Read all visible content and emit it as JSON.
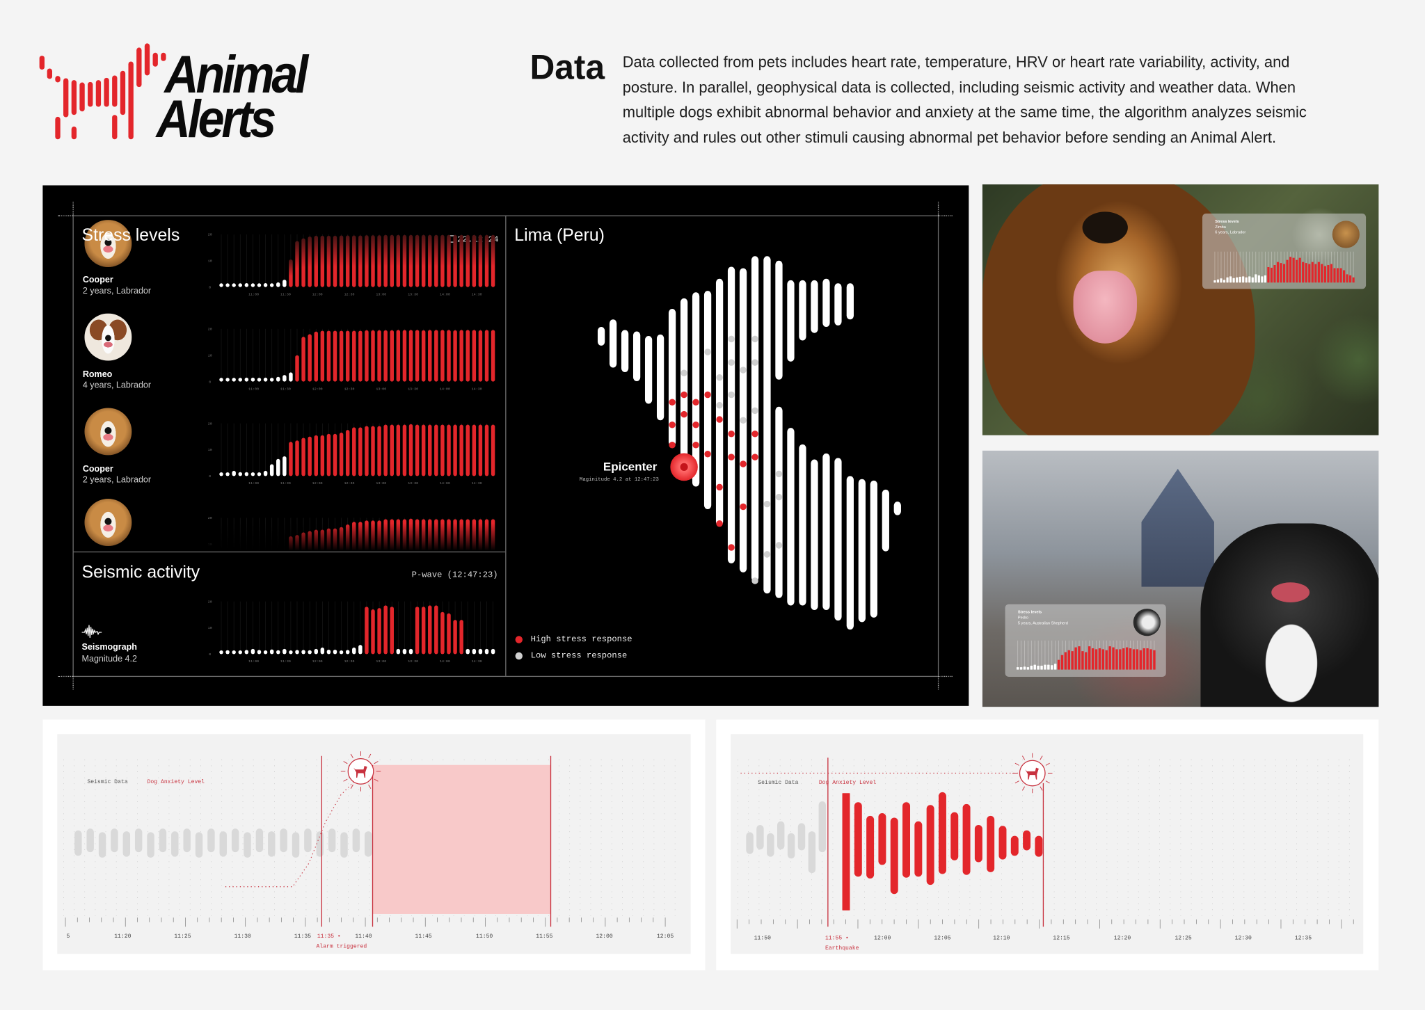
{
  "brand": {
    "name_line1": "Animal",
    "name_line2": "Alerts",
    "color": "#e3262b",
    "logo_icon": "bar-dog-logo"
  },
  "intro": {
    "heading": "Data",
    "lines": [
      "Data collected from pets includes heart rate, temperature, HRV or heart rate variability, activity, and",
      "posture. In parallel, geophysical data is collected, including seismic activity and weather data. When",
      "multiple dogs exhibit abnormal behavior and anxiety at the same time, the algorithm analyzes seismic",
      "activity and rules out other stimuli causing abnormal pet behavior before sending an Animal Alert."
    ]
  },
  "dashboard": {
    "stress": {
      "title": "Stress levels",
      "date": "22.12.24",
      "date_icon": "calendar-icon",
      "dogs": [
        {
          "name": "Cooper",
          "info": "2 years, Labrador"
        },
        {
          "name": "Romeo",
          "info": "4 years, Labrador"
        },
        {
          "name": "Cooper",
          "info": "2 years, Labrador"
        }
      ]
    },
    "seismic": {
      "title": "Seismic activity",
      "wave": "P-wave (12:47:23)",
      "icon": "seismograph-icon",
      "label": "Seismograph",
      "magnitude": "Magnitude 4.2"
    },
    "map": {
      "title": "Lima (Peru)",
      "epicenter_label": "Epicenter",
      "epicenter_detail": "Maginitude 4.2 at 12:47:23",
      "legend": [
        {
          "label": "High stress response",
          "color": "#e3262b"
        },
        {
          "label": "Low stress response",
          "color": "#cfcfcf"
        }
      ]
    }
  },
  "photos": [
    {
      "card_title": "Stress levels",
      "dog_name": "Zimba",
      "dog_info": "6 years, Labrador"
    },
    {
      "card_title": "Stress levels",
      "dog_name": "Pedro",
      "dog_info": "5 years, Australian Shepherd"
    }
  ],
  "timelines": [
    {
      "legend_seismic": "Seismic Data",
      "legend_anxiety": "Dog Anxiety Level",
      "event_time": "11:35",
      "event_label": "Alarm triggered",
      "first_tick": "5",
      "xticks": [
        "11:20",
        "11:25",
        "11:30",
        "11:35",
        "11:40",
        "11:45",
        "11:50",
        "11:55",
        "12:00",
        "12:05"
      ]
    },
    {
      "legend_seismic": "Seismic Data",
      "legend_anxiety": "Dog Anxiety Level",
      "event_time": "11:55",
      "event_label": "Earthquake",
      "xticks": [
        "11:50",
        "12:00",
        "12:05",
        "12:10",
        "12:15",
        "12:20",
        "12:25",
        "12:30",
        "12:35"
      ]
    }
  ],
  "colors": {
    "alert_red": "#e3262b",
    "timeline_red": "#c8323f",
    "highlight_pink": "#f8c9c9",
    "low_bar": "#ffffff",
    "seismic_gray": "#d9d9d9"
  },
  "chart_data": [
    {
      "type": "bar",
      "dog": "Cooper",
      "ylim": [
        0,
        20
      ],
      "yticks": [
        "0",
        "10",
        "20"
      ],
      "xticks": [
        "11:00",
        "11:30",
        "12:00",
        "12:30",
        "13:00",
        "13:30",
        "14:00",
        "14:30"
      ],
      "alert_start_index": 11,
      "values": [
        1,
        1.2,
        1,
        1,
        1.5,
        1.2,
        1,
        1.5,
        1.2,
        1.8,
        2.8,
        10.5,
        17.5,
        18.5,
        19.2,
        19.5,
        19.5,
        19.5,
        19.5,
        19.6,
        19.6,
        19.6,
        19.6,
        19.7,
        19.7,
        19.7,
        19.8,
        19.8,
        19.8,
        19.8,
        19.8,
        19.8,
        19.8,
        19.8,
        19.8,
        19.8,
        19.8,
        19.8,
        19.8,
        19.8,
        19.8,
        19.8,
        19.8,
        19.8
      ]
    },
    {
      "type": "bar",
      "dog": "Romeo",
      "ylim": [
        0,
        20
      ],
      "yticks": [
        "0",
        "10",
        "20"
      ],
      "xticks": [
        "11:00",
        "11:30",
        "12:00",
        "12:30",
        "13:00",
        "13:30",
        "14:00",
        "14:30"
      ],
      "alert_start_index": 12,
      "values": [
        1,
        1,
        1,
        1,
        1.5,
        1.5,
        1.2,
        1.5,
        1.3,
        1.8,
        2.5,
        3.5,
        10,
        17,
        18,
        19,
        19.3,
        19.3,
        19.3,
        19.3,
        19.3,
        19.3,
        19.3,
        19.5,
        19.5,
        19.5,
        19.5,
        19.5,
        19.6,
        19.6,
        19.6,
        19.6,
        19.5,
        19.6,
        19.6,
        19.6,
        19.6,
        19.5,
        19.6,
        19.6,
        19.6,
        19.5,
        19.6,
        19.6
      ]
    },
    {
      "type": "bar",
      "dog": "Cooper",
      "ylim": [
        0,
        20
      ],
      "yticks": [
        "0",
        "10",
        "20"
      ],
      "xticks": [
        "11:00",
        "11:30",
        "12:00",
        "12:30",
        "13:00",
        "13:30",
        "14:00",
        "14:30"
      ],
      "alert_start_index": 11,
      "values": [
        1,
        1,
        2,
        1.5,
        1.5,
        1,
        1.2,
        2,
        4.5,
        6.5,
        7.5,
        13,
        13.5,
        14.5,
        15,
        15.5,
        15.5,
        16,
        16,
        16.5,
        17.5,
        18.5,
        18.5,
        19,
        19,
        19,
        19.5,
        19.5,
        19.5,
        19.5,
        19.7,
        19.5,
        19.5,
        19.5,
        19.5,
        19.5,
        19.5,
        19.5,
        19.5,
        19.5,
        19.5,
        19.5,
        19.5,
        19.5
      ]
    },
    {
      "type": "bar",
      "ylim": [
        0,
        20
      ],
      "yticks": [
        "10",
        "20"
      ],
      "alert_start_index": 11,
      "values": [
        0.5,
        0.5,
        0.5,
        0.5,
        0.5,
        0.5,
        0.5,
        0.5,
        0.5,
        0.5,
        0.5,
        13,
        13.5,
        14.5,
        15,
        15.5,
        15.5,
        16,
        16,
        16.5,
        17.5,
        18.5,
        18.5,
        19,
        19,
        19,
        19.5,
        19.5,
        19.5,
        19.5,
        19.7,
        19.5,
        19.5,
        19.5,
        19.5,
        19.5,
        19.5,
        19.5,
        19.5,
        19.5,
        19.5,
        19.5,
        19.5,
        19.5
      ]
    },
    {
      "type": "bar",
      "title": "Seismic activity",
      "ylim": [
        0,
        20
      ],
      "yticks": [
        "0",
        "10",
        "20"
      ],
      "xticks": [
        "11:00",
        "11:30",
        "12:00",
        "12:30",
        "13:00",
        "13:30",
        "14:00",
        "14:30"
      ],
      "alert_ranges": [
        [
          23,
          27
        ],
        [
          31,
          38
        ]
      ],
      "values": [
        1,
        1.5,
        1.2,
        1.3,
        1.6,
        2,
        1.6,
        1.3,
        1.8,
        1.5,
        2,
        1.2,
        1.6,
        1.6,
        1.5,
        2,
        2.5,
        1.7,
        1.7,
        1.2,
        1.6,
        2.5,
        3.5,
        18,
        17,
        17.5,
        18.5,
        18,
        2,
        2,
        2,
        18,
        18,
        18.5,
        18.5,
        16,
        15.5,
        13,
        13,
        2,
        2,
        2,
        2,
        2
      ]
    },
    {
      "type": "bar",
      "dog": "Zimba",
      "ylim": [
        0,
        15
      ],
      "alert_start_index": 17,
      "values": [
        1,
        1.5,
        2,
        1.3,
        2.5,
        3,
        2.2,
        2.5,
        2.8,
        3,
        2.5,
        3,
        2.5,
        4,
        3.5,
        3,
        3.5,
        7.5,
        7.2,
        8.5,
        10,
        9.5,
        9,
        11,
        12.5,
        12,
        11,
        12,
        10,
        9.5,
        9,
        10,
        9,
        10,
        9,
        8,
        8.5,
        9,
        7,
        7,
        7,
        6,
        4,
        3.5,
        2.5
      ]
    },
    {
      "type": "bar",
      "dog": "Pedro",
      "ylim": [
        0,
        15
      ],
      "alert_start_index": 12,
      "values": [
        1,
        1.2,
        1.5,
        1.2,
        2,
        2.5,
        2,
        2,
        2.5,
        2.5,
        2.3,
        3,
        5,
        7.5,
        9,
        10,
        9.5,
        11.5,
        12,
        9.5,
        9,
        12,
        11,
        10.5,
        11,
        10.5,
        10,
        12,
        11.5,
        10.5,
        10.5,
        11,
        11.5,
        11,
        10.5,
        10.5,
        10,
        11,
        11,
        10.5,
        10
      ]
    },
    {
      "type": "bar",
      "xticks": [
        "11:20",
        "11:25",
        "11:30",
        "11:35",
        "11:40",
        "11:45",
        "11:50",
        "11:55",
        "12:00",
        "12:05"
      ],
      "seismic_upper": [
        14,
        16,
        12,
        16,
        13,
        16,
        12,
        16,
        13,
        16,
        12,
        16,
        13,
        16,
        12,
        16,
        13,
        16,
        12,
        16,
        13,
        16,
        12,
        16,
        13
      ],
      "seismic_lower": [
        14,
        10,
        16,
        10,
        15,
        10,
        16,
        10,
        15,
        10,
        16,
        10,
        15,
        10,
        16,
        10,
        15,
        10,
        16,
        10,
        15,
        10,
        16,
        10,
        15
      ],
      "anxiety_line": [
        {
          "t": "11:28",
          "level": 0.15
        },
        {
          "t": "11:34",
          "level": 0.15
        },
        {
          "t": "11:40",
          "level": 1
        }
      ],
      "alarm_span": [
        "11:40",
        "11:55"
      ]
    },
    {
      "type": "bar",
      "xticks": [
        "11:50",
        "12:00",
        "12:05",
        "12:10",
        "12:15",
        "12:20",
        "12:25",
        "12:30",
        "12:35"
      ],
      "seismic_upper": [
        16,
        24,
        15,
        28,
        15,
        26,
        17,
        50
      ],
      "seismic_lower": [
        8,
        3,
        11,
        3,
        13,
        4,
        29,
        6
      ],
      "anxiety_upper": [
        63,
        53,
        38,
        41,
        36,
        53,
        32,
        50,
        64,
        42,
        51,
        28,
        38,
        27,
        16,
        22,
        16
      ],
      "anxiety_lower": [
        66,
        29,
        31,
        16,
        48,
        30,
        29,
        38,
        26,
        11,
        27,
        13,
        24,
        10,
        6,
        0,
        7
      ]
    }
  ]
}
